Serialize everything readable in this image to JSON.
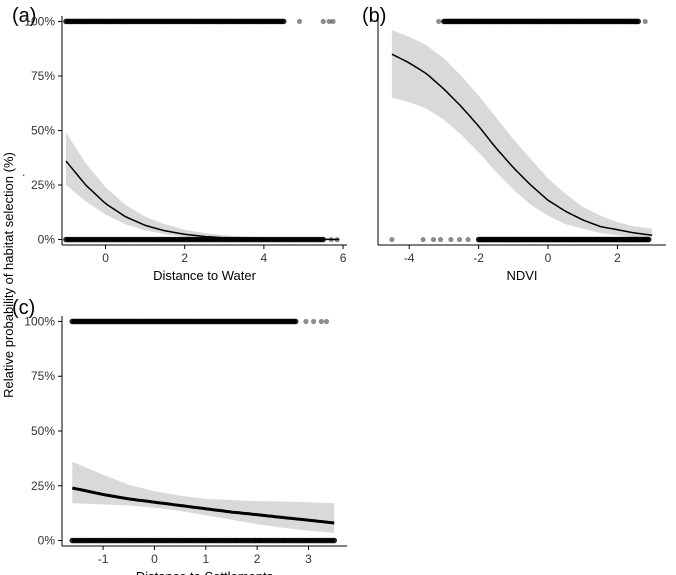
{
  "figure": {
    "ylabel": "Relative probability of habitat selection (%)",
    "caption_dot": "."
  },
  "chart_data": [
    {
      "type": "line",
      "panel": "(a)",
      "xlabel": "Distance to Water",
      "ylabel": "Relative probability of habitat selection (%)",
      "xlim": [
        -1.1,
        6.1
      ],
      "ylim": [
        -0.025,
        1.025
      ],
      "xticks": [
        0,
        2,
        4,
        6
      ],
      "xtick_labels": [
        "0",
        "2",
        "4",
        "6"
      ],
      "yticks": [
        0,
        0.25,
        0.5,
        0.75,
        1.0
      ],
      "ytick_labels": [
        "0%",
        "25%",
        "50%",
        "75%",
        "100%"
      ],
      "fit": {
        "x": [
          -1.0,
          -0.5,
          0.0,
          0.5,
          1.0,
          1.5,
          2.0,
          2.5,
          3.0,
          3.5,
          4.0,
          4.5,
          5.0,
          5.5,
          5.9
        ],
        "y": [
          0.36,
          0.25,
          0.165,
          0.105,
          0.065,
          0.04,
          0.024,
          0.014,
          0.008,
          0.005,
          0.003,
          0.002,
          0.001,
          0.001,
          0.0
        ],
        "lower": [
          0.25,
          0.175,
          0.115,
          0.07,
          0.042,
          0.024,
          0.013,
          0.007,
          0.004,
          0.002,
          0.001,
          0.0,
          0.0,
          0.0,
          0.0
        ],
        "upper": [
          0.49,
          0.35,
          0.24,
          0.16,
          0.105,
          0.07,
          0.045,
          0.03,
          0.02,
          0.014,
          0.01,
          0.008,
          0.006,
          0.005,
          0.004
        ]
      },
      "observations": {
        "presence": {
          "y": 1,
          "dense_from": -1.0,
          "dense_to": 4.5,
          "outliers": [
            4.9,
            5.5,
            5.65,
            5.75
          ]
        },
        "absence": {
          "y": 0,
          "dense_from": -1.0,
          "dense_to": 5.5,
          "outliers": [
            5.7,
            5.85
          ]
        }
      }
    },
    {
      "type": "line",
      "panel": "(b)",
      "xlabel": "NDVI",
      "ylabel": "",
      "xlim": [
        -4.9,
        3.4
      ],
      "ylim": [
        -0.025,
        1.025
      ],
      "xticks": [
        -4,
        -2,
        0,
        2
      ],
      "xtick_labels": [
        "-4",
        "-2",
        "0",
        "2"
      ],
      "yticks": [],
      "ytick_labels": [],
      "fit": {
        "x": [
          -4.5,
          -4.0,
          -3.5,
          -3.0,
          -2.5,
          -2.0,
          -1.5,
          -1.0,
          -0.5,
          0.0,
          0.5,
          1.0,
          1.5,
          2.0,
          2.5,
          3.0
        ],
        "y": [
          0.85,
          0.81,
          0.76,
          0.69,
          0.61,
          0.52,
          0.42,
          0.33,
          0.25,
          0.18,
          0.13,
          0.09,
          0.06,
          0.045,
          0.03,
          0.02
        ],
        "lower": [
          0.65,
          0.63,
          0.6,
          0.55,
          0.48,
          0.4,
          0.31,
          0.23,
          0.16,
          0.11,
          0.07,
          0.05,
          0.03,
          0.02,
          0.01,
          0.01
        ],
        "upper": [
          0.96,
          0.93,
          0.89,
          0.83,
          0.75,
          0.66,
          0.56,
          0.46,
          0.37,
          0.28,
          0.21,
          0.15,
          0.11,
          0.08,
          0.06,
          0.05
        ]
      },
      "observations": {
        "presence": {
          "y": 1,
          "dense_from": -3.0,
          "dense_to": 2.6,
          "outliers": [
            -3.15,
            2.8
          ]
        },
        "absence": {
          "y": 0,
          "dense_from": -2.0,
          "dense_to": 2.9,
          "outliers": [
            -4.5,
            -3.6,
            -3.3,
            -3.1,
            -2.8,
            -2.55,
            -2.3
          ]
        }
      }
    },
    {
      "type": "line",
      "panel": "(c)",
      "xlabel": "Distance to Settlements",
      "ylabel": "Relative probability of habitat selection (%)",
      "xlim": [
        -1.8,
        3.75
      ],
      "ylim": [
        -0.025,
        1.025
      ],
      "xticks": [
        -1,
        0,
        1,
        2,
        3
      ],
      "xtick_labels": [
        "-1",
        "0",
        "1",
        "2",
        "3"
      ],
      "yticks": [
        0,
        0.25,
        0.5,
        0.75,
        1.0
      ],
      "ytick_labels": [
        "0%",
        "25%",
        "50%",
        "75%",
        "100%"
      ],
      "fit": {
        "x": [
          -1.6,
          -1.0,
          -0.5,
          0.0,
          0.5,
          1.0,
          1.5,
          2.0,
          2.5,
          3.0,
          3.5
        ],
        "y": [
          0.24,
          0.21,
          0.19,
          0.175,
          0.16,
          0.145,
          0.13,
          0.118,
          0.105,
          0.093,
          0.08
        ],
        "lower": [
          0.17,
          0.165,
          0.16,
          0.15,
          0.135,
          0.115,
          0.095,
          0.075,
          0.058,
          0.045,
          0.035
        ],
        "upper": [
          0.36,
          0.3,
          0.255,
          0.225,
          0.205,
          0.19,
          0.185,
          0.18,
          0.178,
          0.175,
          0.17
        ]
      },
      "observations": {
        "presence": {
          "y": 1,
          "dense_from": -1.6,
          "dense_to": 2.75,
          "outliers": [
            2.95,
            3.1,
            3.25,
            3.35
          ]
        },
        "absence": {
          "y": 0,
          "dense_from": -1.6,
          "dense_to": 3.5,
          "outliers": []
        }
      }
    }
  ]
}
